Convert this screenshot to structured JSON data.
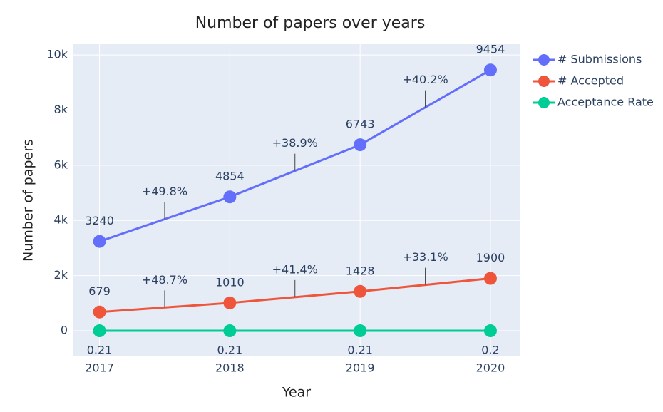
{
  "chart_data": {
    "type": "line",
    "title": "Number of papers over years",
    "x_label": "Year",
    "y_label": "Number of papers",
    "x": [
      2017,
      2018,
      2019,
      2020
    ],
    "xlim": [
      2016.8,
      2020.23
    ],
    "xticks": [
      2017,
      2018,
      2019,
      2020
    ],
    "ylim": [
      -930,
      10390
    ],
    "yticks": [
      0,
      {
        "value": 2000,
        "label": "2k"
      },
      {
        "value": 4000,
        "label": "4k"
      },
      {
        "value": 6000,
        "label": "6k"
      },
      {
        "value": 8000,
        "label": "8k"
      },
      {
        "value": 10000,
        "label": "10k"
      }
    ],
    "grid": true,
    "legend": "outside-top-right",
    "series": [
      {
        "name": "# Submissions",
        "color": "#636efa",
        "values": [
          3240,
          4854,
          6743,
          9454
        ],
        "label_position": "above",
        "growth_labels": [
          "+49.8%",
          "+38.9%",
          "+40.2%"
        ]
      },
      {
        "name": "# Accepted",
        "color": "#ef553b",
        "values": [
          679,
          1010,
          1428,
          1900
        ],
        "label_position": "above",
        "growth_labels": [
          "+48.7%",
          "+41.4%",
          "+33.1%"
        ]
      },
      {
        "name": "Acceptance Rate",
        "color": "#00cc96",
        "values": [
          0.21,
          0.21,
          0.21,
          0.2
        ],
        "label_position": "below"
      }
    ]
  }
}
